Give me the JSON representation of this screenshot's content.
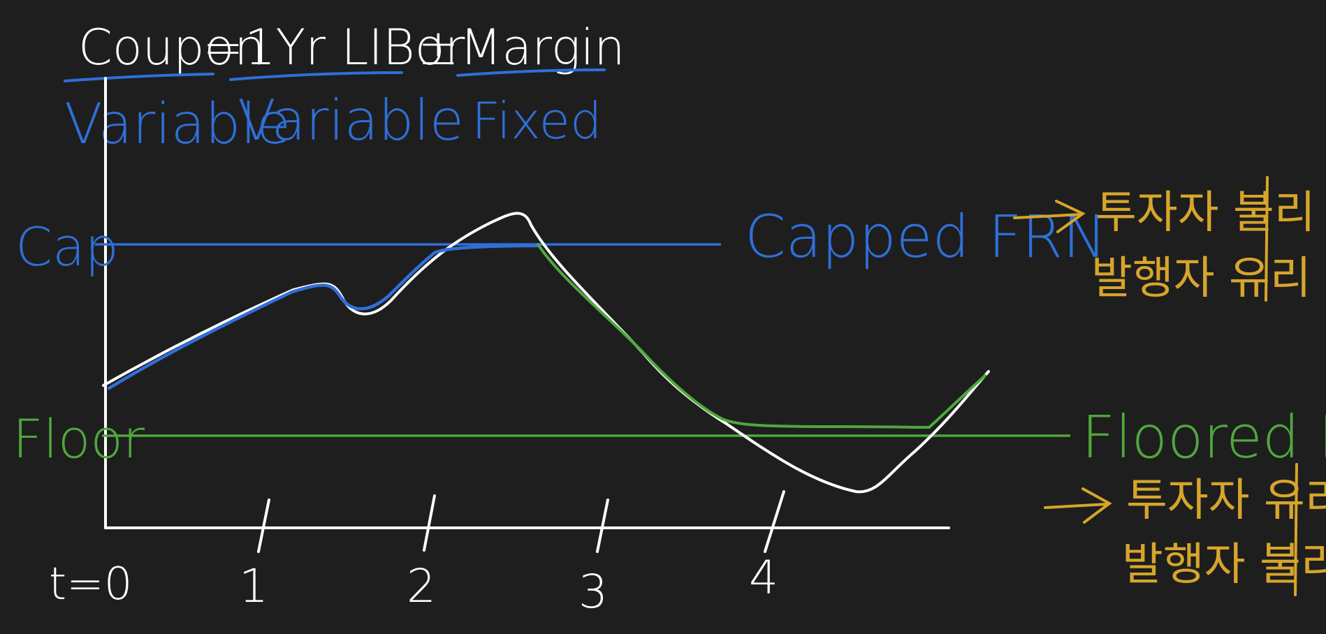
{
  "formula": {
    "coupon": "Coupon",
    "equals": "=",
    "index": "1Yr LIBor",
    "plus_minus": "±",
    "margin": "Margin"
  },
  "labels": {
    "coupon_kind": "Variable",
    "index_kind": "Variable",
    "margin_kind": "Fixed",
    "cap": "Cap",
    "floor": "Floor",
    "capped_frn": "Capped FRN",
    "floored_frn": "Floored FRN",
    "capped_note_line1": "투자자 불리",
    "capped_note_line2": "발행자 유리",
    "floored_note_line1": "투자자 유리",
    "floored_note_line2": "발행자 불리"
  },
  "axis": {
    "ticks": [
      "t=0",
      "1",
      "2",
      "3",
      "4"
    ]
  },
  "colors": {
    "background": "#1e1e1e",
    "ink": "#ffffff",
    "cap_blue": "#2f6fd8",
    "floor_green": "#4fa83d",
    "note_gold": "#d7a52c"
  }
}
